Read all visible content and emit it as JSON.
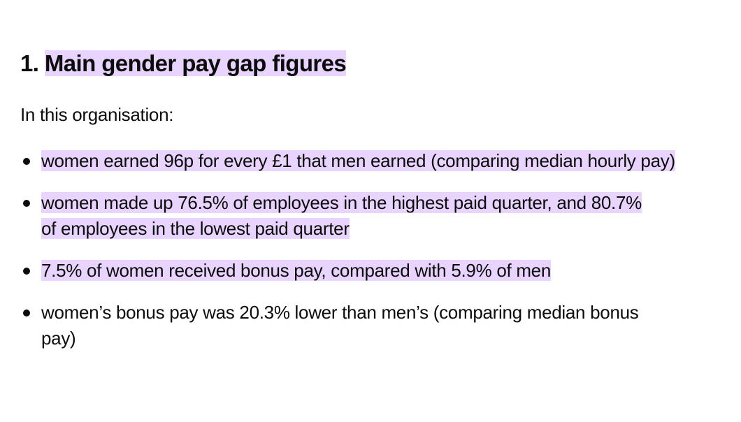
{
  "section": {
    "heading_number": "1.",
    "heading_text": "Main gender pay gap figures",
    "intro": "In this organisation:",
    "bullets": [
      {
        "text": "women earned 96p for every £1 that men earned (comparing median hourly pay)",
        "highlighted": true
      },
      {
        "text": "women made up 76.5% of employees in the highest paid quarter, and 80.7% of employees in the lowest paid quarter",
        "highlighted": true
      },
      {
        "text": "7.5% of women received bonus pay, compared with 5.9% of men",
        "highlighted": true
      },
      {
        "text": "women’s bonus pay was 20.3% lower than men’s (comparing median bonus pay)",
        "highlighted": false
      }
    ]
  },
  "colors": {
    "highlight": "#e9d4ff",
    "text": "#0b0c0c"
  }
}
